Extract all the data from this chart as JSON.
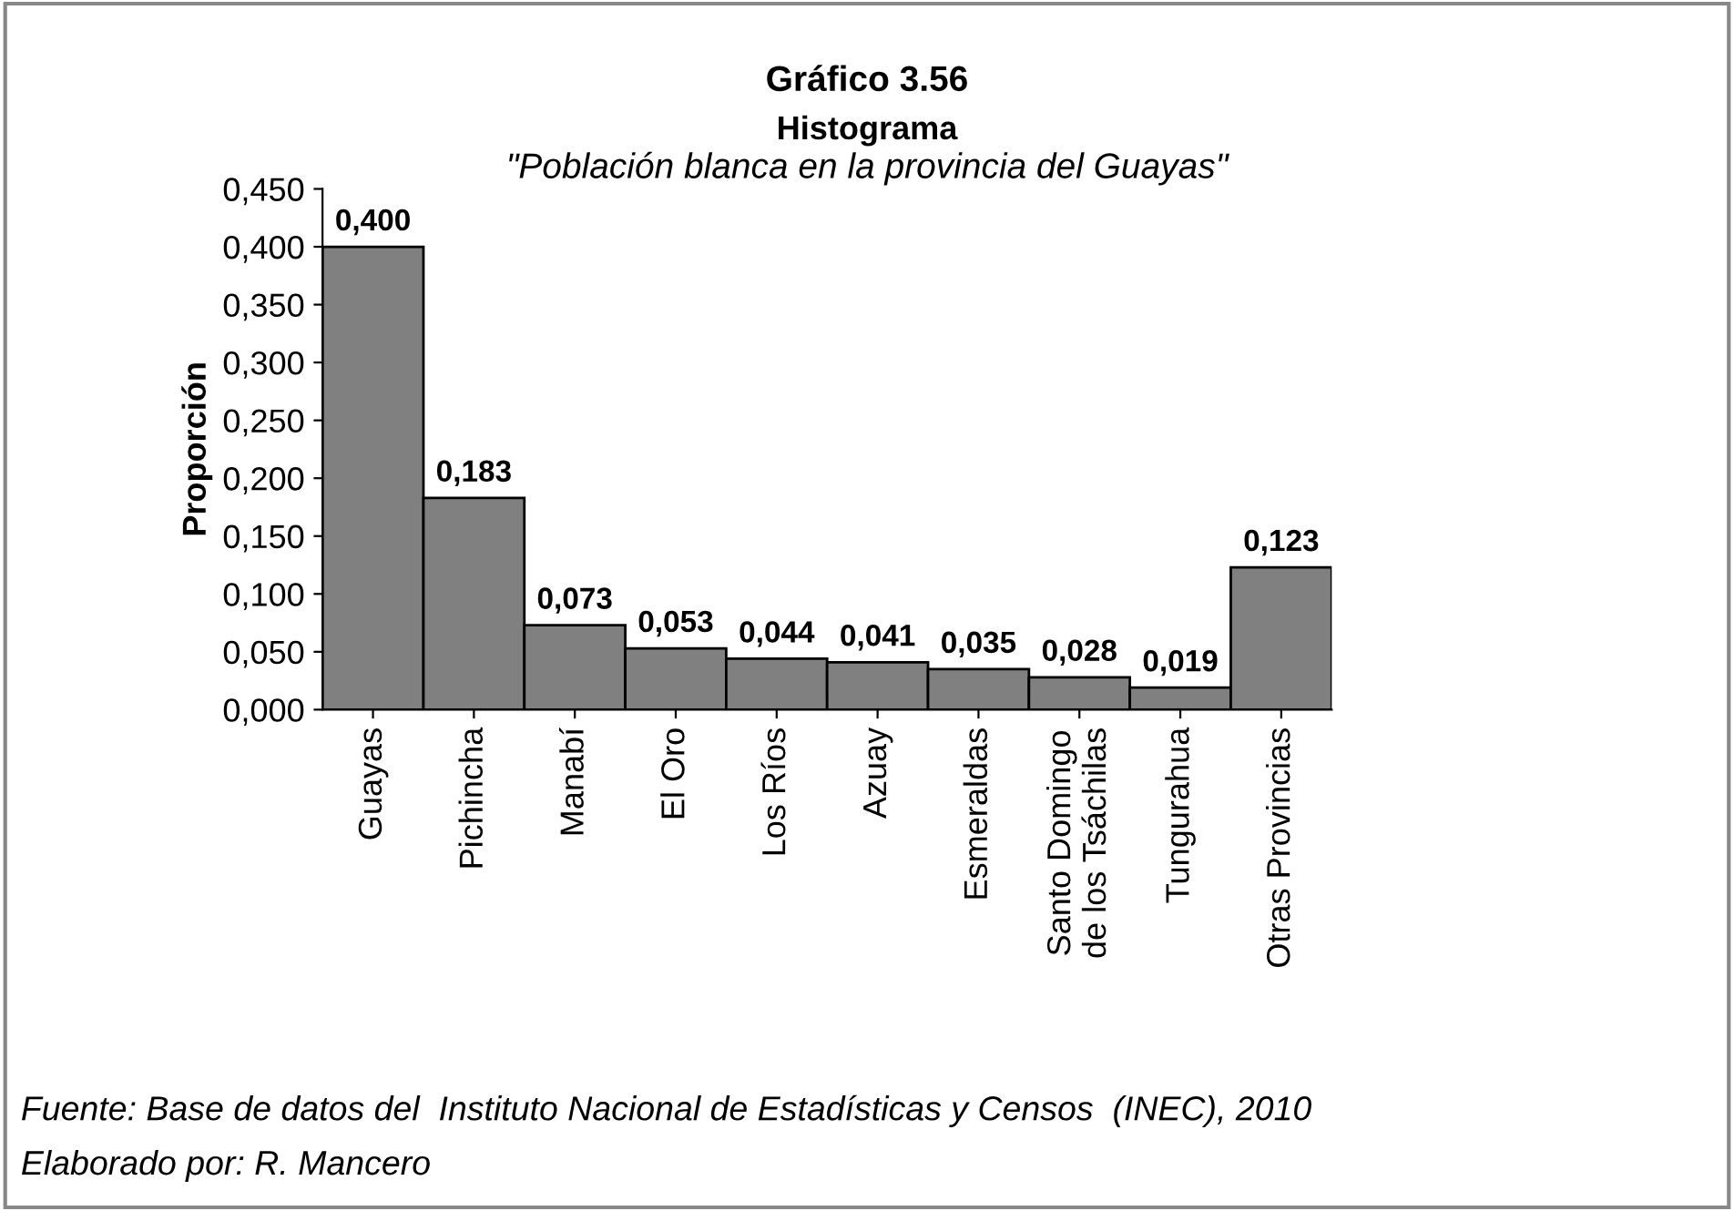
{
  "chart_data": {
    "type": "bar",
    "title": "Gráfico 3.56",
    "subtitle": "Histograma",
    "ylabel": "Proporción",
    "categories": [
      "Guayas",
      "Pichincha",
      "Manabí",
      "El Oro",
      "Los Ríos",
      "Azuay",
      "Esmeraldas",
      "Santo Domingo\nde los Tsáchilas",
      "Tungurahua",
      "Otras Provincias"
    ],
    "values": [
      0.4,
      0.183,
      0.073,
      0.053,
      0.044,
      0.041,
      0.035,
      0.028,
      0.019,
      0.123
    ],
    "value_labels": [
      "0,400",
      "0,183",
      "0,073",
      "0,053",
      "0,044",
      "0,041",
      "0,035",
      "0,028",
      "0,019",
      "0,123"
    ],
    "color": "#808080",
    "grid": false,
    "legend": false,
    "ylim": [
      0,
      0.45
    ],
    "yticks": [
      {
        "value": 0,
        "label": "0,000"
      },
      {
        "value": 0.05,
        "label": "0,050"
      },
      {
        "value": 0.1,
        "label": "0,100"
      },
      {
        "value": 0.15,
        "label": "0,150"
      },
      {
        "value": 0.2,
        "label": "0,200"
      },
      {
        "value": 0.25,
        "label": "0,250"
      },
      {
        "value": 0.3,
        "label": "0,300"
      },
      {
        "value": 0.35,
        "label": "0,350"
      },
      {
        "value": 0.4,
        "label": "0,400"
      },
      {
        "value": 0.45,
        "label": "0,450"
      }
    ],
    "annotations": [
      "\"Población blanca en la provincia del Guayas\"",
      "Fuente: Base de datos del  Instituto Nacional de Estadísticas y Censos  (INEC), 2010",
      "Elaborado por: R. Mancero"
    ]
  }
}
